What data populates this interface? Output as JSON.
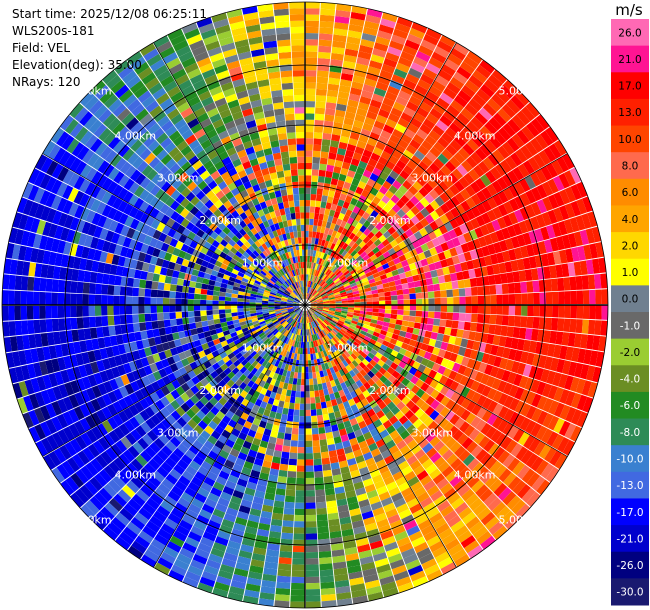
{
  "info": {
    "start_time": "Start time: 2025/12/08 06:25:11",
    "instrument": "WLS200s-181",
    "field": "Field: VEL",
    "elevation": "Elevation(deg): 35.00",
    "nrays": "NRays: 120"
  },
  "chart_data": {
    "type": "heatmap",
    "projection": "polar-ppi",
    "field": "VEL",
    "units": "m/s",
    "n_rays": 120,
    "range_rings_km": [
      "1.00km",
      "2.00km",
      "3.00km",
      "4.00km",
      "5.00km"
    ],
    "colorbar": {
      "label": "m/s",
      "ticks": [
        "26.0",
        "21.0",
        "17.0",
        "13.0",
        "10.0",
        "8.0",
        "6.0",
        "4.0",
        "2.0",
        "1.0",
        "0.0",
        "-1.0",
        "-2.0",
        "-4.0",
        "-6.0",
        "-8.0",
        "-10.0",
        "-13.0",
        "-17.0",
        "-21.0",
        "-26.0",
        "-30.0"
      ],
      "colors": [
        "#ff69b4",
        "#ff1493",
        "#ff0000",
        "#ff2000",
        "#ff4500",
        "#ff6a4d",
        "#ff8c00",
        "#ffa500",
        "#ffd700",
        "#ffff00",
        "#708090",
        "#696969",
        "#9acd32",
        "#6b8e23",
        "#228b22",
        "#2e8b57",
        "#3a80d0",
        "#4169e1",
        "#0000ff",
        "#0000cd",
        "#000080",
        "#191970"
      ],
      "tick_colors": [
        "#000000",
        "#000000",
        "#000000",
        "#000000",
        "#000000",
        "#000000",
        "#000000",
        "#000000",
        "#000000",
        "#000000",
        "#000000",
        "#ffffff",
        "#000000",
        "#ffffff",
        "#ffffff",
        "#ffffff",
        "#ffffff",
        "#ffffff",
        "#ffffff",
        "#ffffff",
        "#ffffff",
        "#ffffff"
      ]
    }
  }
}
